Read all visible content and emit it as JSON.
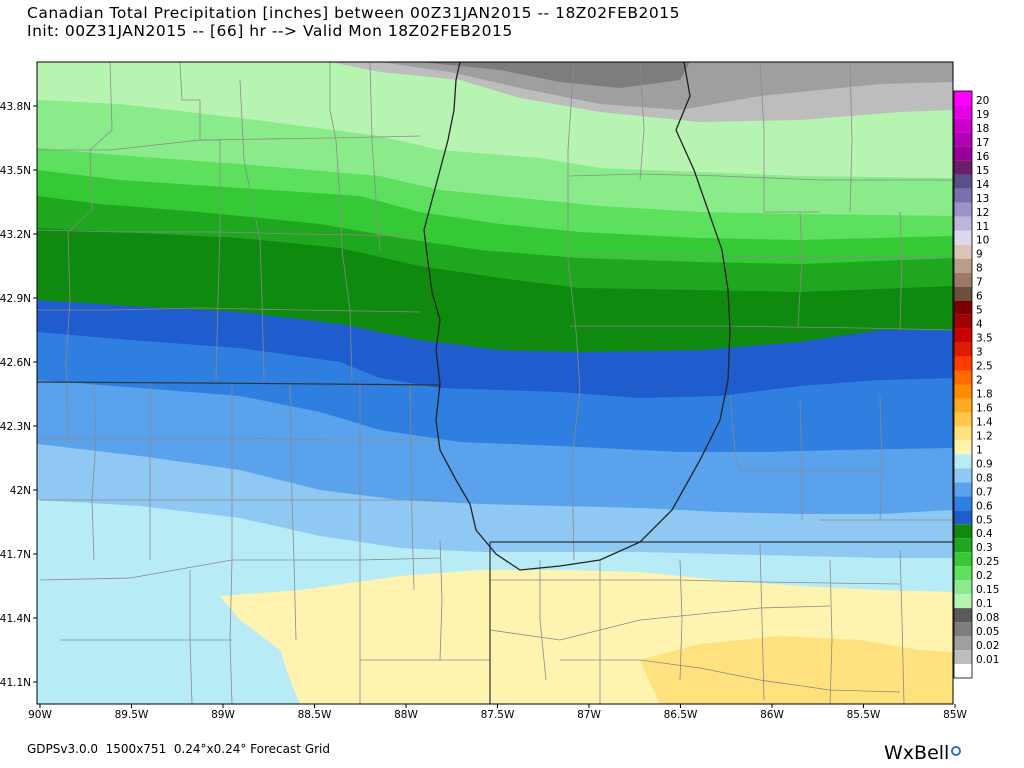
{
  "header": {
    "title_line1": "Canadian Total Precipitation [inches] between 00Z31JAN2015 -- 18Z02FEB2015",
    "title_line2": "Init: 00Z31JAN2015 -- [66] hr --> Valid Mon 18Z02FEB2015"
  },
  "axes": {
    "lat_labels": [
      "43.8N",
      "43.5N",
      "43.2N",
      "42.9N",
      "42.6N",
      "42.3N",
      "42N",
      "41.7N",
      "41.4N",
      "41.1N"
    ],
    "lon_labels": [
      "90W",
      "89.5W",
      "89W",
      "88.5W",
      "88W",
      "87.5W",
      "87W",
      "86.5W",
      "86W",
      "85.5W",
      "85W"
    ]
  },
  "legend": {
    "levels": [
      {
        "label": "20",
        "color": "#ff00ff"
      },
      {
        "label": "19",
        "color": "#e600e6"
      },
      {
        "label": "18",
        "color": "#cc00cc"
      },
      {
        "label": "17",
        "color": "#b300b3"
      },
      {
        "label": "16",
        "color": "#990099"
      },
      {
        "label": "15",
        "color": "#6a1f6a"
      },
      {
        "label": "14",
        "color": "#5a4f8a"
      },
      {
        "label": "13",
        "color": "#7a6fb0"
      },
      {
        "label": "12",
        "color": "#9c94c8"
      },
      {
        "label": "11",
        "color": "#bdb6dc"
      },
      {
        "label": "10",
        "color": "#dcd8ee"
      },
      {
        "label": "9",
        "color": "#d9c6b8"
      },
      {
        "label": "8",
        "color": "#bb9d8a"
      },
      {
        "label": "7",
        "color": "#9c7a66"
      },
      {
        "label": "6",
        "color": "#6e4e3e"
      },
      {
        "label": "5",
        "color": "#7a0000"
      },
      {
        "label": "4",
        "color": "#a30000"
      },
      {
        "label": "3.5",
        "color": "#c80000"
      },
      {
        "label": "3",
        "color": "#e11b00"
      },
      {
        "label": "2.5",
        "color": "#ff3b00"
      },
      {
        "label": "2",
        "color": "#ff6a00"
      },
      {
        "label": "1.8",
        "color": "#ff8c00"
      },
      {
        "label": "1.6",
        "color": "#ffaa22"
      },
      {
        "label": "1.4",
        "color": "#ffc84a"
      },
      {
        "label": "1.2",
        "color": "#ffe27d"
      },
      {
        "label": "1",
        "color": "#fff3b0"
      },
      {
        "label": "0.9",
        "color": "#b7ecf6"
      },
      {
        "label": "0.8",
        "color": "#90c8f4"
      },
      {
        "label": "0.7",
        "color": "#5aa2ec"
      },
      {
        "label": "0.6",
        "color": "#2f7fe0"
      },
      {
        "label": "0.5",
        "color": "#1f5ccd"
      },
      {
        "label": "0.4",
        "color": "#0f8a0f"
      },
      {
        "label": "0.3",
        "color": "#1fa81f"
      },
      {
        "label": "0.25",
        "color": "#35c935"
      },
      {
        "label": "0.2",
        "color": "#5de05d"
      },
      {
        "label": "0.15",
        "color": "#8aeb8a"
      },
      {
        "label": "0.1",
        "color": "#b7f4b1"
      },
      {
        "label": "0.08",
        "color": "#5a5a5a"
      },
      {
        "label": "0.05",
        "color": "#7d7d7d"
      },
      {
        "label": "0.02",
        "color": "#9f9f9f"
      },
      {
        "label": "0.01",
        "color": "#bdbdbd"
      },
      {
        "label": "",
        "color": "#ffffff"
      }
    ]
  },
  "footer": {
    "model_text": "GDPSv3.0.0  1500x751  0.24°x0.24° Forecast Grid",
    "brand": "WxBell"
  },
  "colors": {
    "gray_dark": "#7d7d7d",
    "gray_mid": "#9f9f9f",
    "gray_light": "#bdbdbd",
    "green_01": "#b7f4b1",
    "green_015": "#8aeb8a",
    "green_02": "#5de05d",
    "green_025": "#35c935",
    "green_03": "#1fa81f",
    "green_04": "#0f8a0f",
    "blue_05": "#1f5ccd",
    "blue_06": "#2f7fe0",
    "blue_07": "#5aa2ec",
    "blue_08": "#90c8f4",
    "blue_09": "#b7ecf6",
    "yellow_1": "#fff3b0",
    "yellow_12": "#ffe27d"
  }
}
